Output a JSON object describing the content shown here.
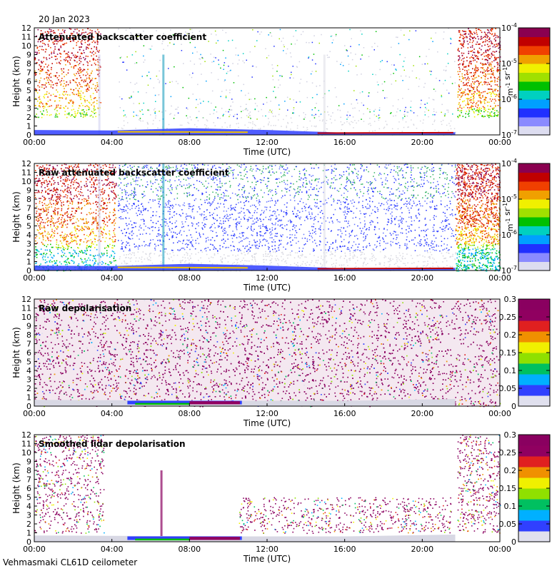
{
  "date": "20 Jan 2023",
  "station": "Vehmasmaki CL61D ceilometer",
  "chart_data": [
    {
      "type": "heatmap",
      "title": "Attenuated backscatter coefficient",
      "xlabel": "Time (UTC)",
      "ylabel": "Height (km)",
      "xticks": [
        "00:00",
        "04:00",
        "08:00",
        "12:00",
        "16:00",
        "20:00",
        "00:00"
      ],
      "yticks": [
        "0",
        "1",
        "2",
        "3",
        "4",
        "5",
        "6",
        "7",
        "8",
        "9",
        "10",
        "11",
        "12"
      ],
      "xlim": [
        0,
        24
      ],
      "ylim": [
        0,
        12
      ],
      "colorbar": {
        "scale": "log",
        "ticks": [
          "10-7",
          "10-6",
          "10-5",
          "10-4"
        ],
        "unit": "m-1 sr-1"
      }
    },
    {
      "type": "heatmap",
      "title": "Raw attenuated backscatter coefficient",
      "xlabel": "Time (UTC)",
      "ylabel": "Height (km)",
      "xticks": [
        "00:00",
        "04:00",
        "08:00",
        "12:00",
        "16:00",
        "20:00",
        "00:00"
      ],
      "yticks": [
        "0",
        "1",
        "2",
        "3",
        "4",
        "5",
        "6",
        "7",
        "8",
        "9",
        "10",
        "11",
        "12"
      ],
      "xlim": [
        0,
        24
      ],
      "ylim": [
        0,
        12
      ],
      "colorbar": {
        "scale": "log",
        "ticks": [
          "10-7",
          "10-6",
          "10-5",
          "10-4"
        ],
        "unit": "m-1 sr-1"
      }
    },
    {
      "type": "heatmap",
      "title": "Raw depolarisation",
      "xlabel": "Time (UTC)",
      "ylabel": "Height (km)",
      "xticks": [
        "00:00",
        "04:00",
        "08:00",
        "12:00",
        "16:00",
        "20:00",
        "00:00"
      ],
      "yticks": [
        "0",
        "1",
        "2",
        "3",
        "4",
        "5",
        "6",
        "7",
        "8",
        "9",
        "10",
        "11",
        "12"
      ],
      "xlim": [
        0,
        24
      ],
      "ylim": [
        0,
        12
      ],
      "colorbar": {
        "scale": "linear",
        "ticks": [
          "0",
          "0.05",
          "0.1",
          "0.15",
          "0.2",
          "0.25",
          "0.3"
        ],
        "unit": ""
      }
    },
    {
      "type": "heatmap",
      "title": "Smoothed lidar depolarisation",
      "xlabel": "Time (UTC)",
      "ylabel": "Height (km)",
      "xticks": [
        "00:00",
        "04:00",
        "08:00",
        "12:00",
        "16:00",
        "20:00",
        "00:00"
      ],
      "yticks": [
        "0",
        "1",
        "2",
        "3",
        "4",
        "5",
        "6",
        "7",
        "8",
        "9",
        "10",
        "11",
        "12"
      ],
      "xlim": [
        0,
        24
      ],
      "ylim": [
        0,
        12
      ],
      "colorbar": {
        "scale": "linear",
        "ticks": [
          "0",
          "0.05",
          "0.1",
          "0.15",
          "0.2",
          "0.25",
          "0.3"
        ],
        "unit": ""
      }
    }
  ]
}
